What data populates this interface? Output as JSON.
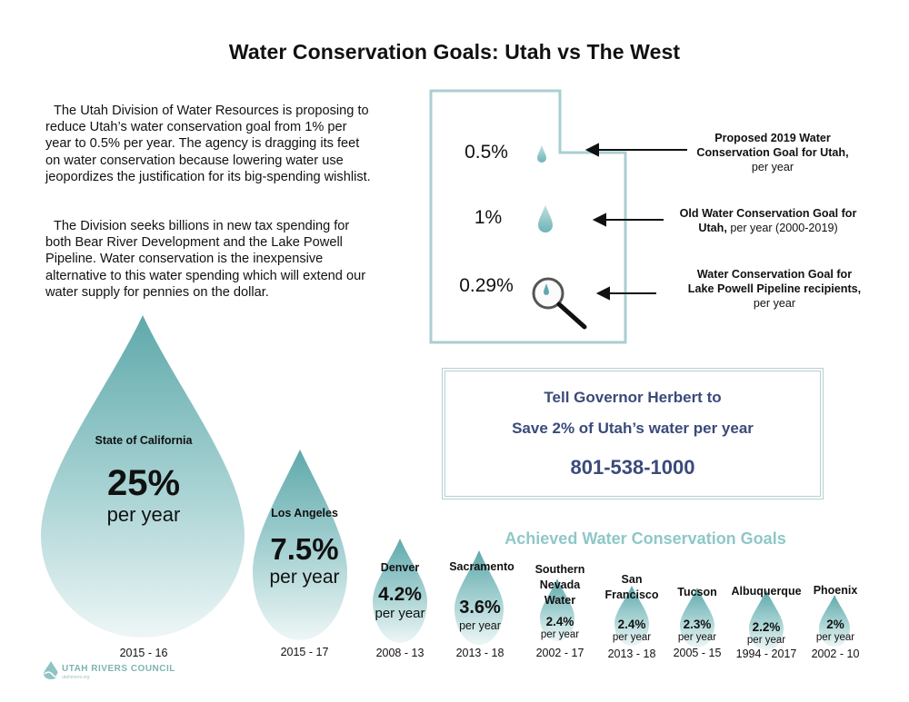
{
  "title": "Water Conservation Goals: Utah vs The West",
  "intro": {
    "paragraph_1": "The Utah Division of Water Resources is proposing to reduce Utah’s water conservation goal from 1% per year to 0.5% per year.  The agency is dragging its feet on water conservation because lowering water use jeopordizes the justification for its big-spending wishlist.",
    "paragraph_2": "The Division seeks billions in new tax spending for both Bear River Development and the Lake Powell Pipeline.  Water conservation is the inexpensive alternative to this water spending which will extend our water supply for pennies on the dollar."
  },
  "utah_goals": [
    {
      "percent": "0.5%",
      "label_bold": "Proposed 2019 Water Conservation Goal for Utah,",
      "label_rest": "per year"
    },
    {
      "percent": "1%",
      "label_bold": "Old Water Conservation Goal for Utah,",
      "label_rest": "per year (2000-2019)"
    },
    {
      "percent": "0.29%",
      "label_bold": "Water Conservation Goal for Lake Powell Pipeline recipients,",
      "label_rest": "per year"
    }
  ],
  "cta": {
    "line_1": "Tell Governor Herbert to",
    "line_2": "Save 2% of Utah’s water per year",
    "phone": "801-538-1000"
  },
  "achieved_heading": "Achieved Water Conservation Goals",
  "achieved": [
    {
      "name": "State of California",
      "value": "25%",
      "unit": "per year",
      "years": "2015 - 16"
    },
    {
      "name": "Los Angeles",
      "value": "7.5%",
      "unit": "per year",
      "years": "2015 - 17"
    },
    {
      "name": "Denver",
      "value": "4.2%",
      "unit": "per year",
      "years": "2008 - 13"
    },
    {
      "name": "Sacramento",
      "value": "3.6%",
      "unit": "per year",
      "years": "2013 - 18"
    },
    {
      "name_lines": [
        "Southern",
        "Nevada",
        "Water"
      ],
      "value": "2.4%",
      "unit": "per year",
      "years": "2002 - 17"
    },
    {
      "name_lines": [
        "San",
        "Francisco"
      ],
      "value": "2.4%",
      "unit": "per year",
      "years": "2013 - 18"
    },
    {
      "name": "Tucson",
      "value": "2.3%",
      "unit": "per year",
      "years": "2005 - 15"
    },
    {
      "name": "Albuquerque",
      "value": "2.2%",
      "unit": "per year",
      "years": "1994 - 2017"
    },
    {
      "name": "Phoenix",
      "value": "2%",
      "unit": "per year",
      "years": "2002 - 10"
    }
  ],
  "logo": {
    "name": "UTAH RIVERS COUNCIL",
    "sub": "utahrivers.org"
  },
  "colors": {
    "drop_top": "#5fa9ab",
    "drop_bottom": "#eef6f6",
    "accent_text": "#3a4a7a",
    "heading_teal": "#8fc7c8",
    "outline": "#a9cfd1"
  }
}
